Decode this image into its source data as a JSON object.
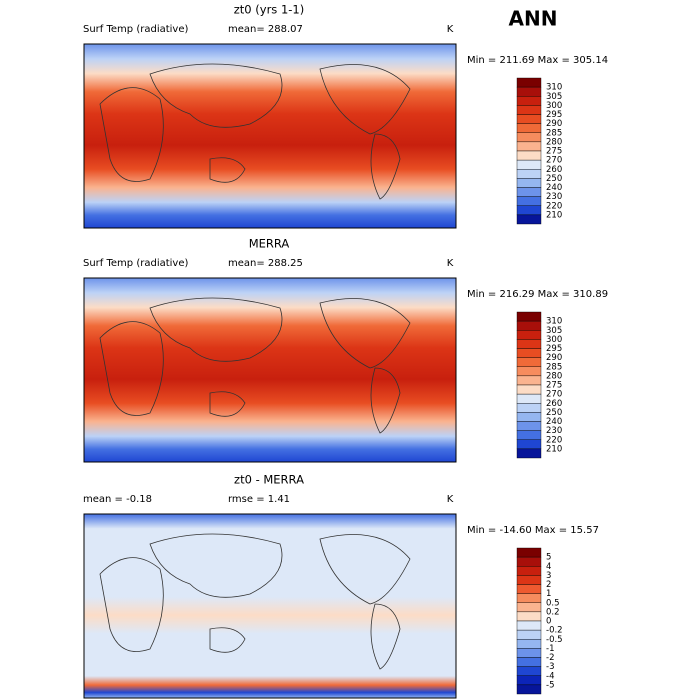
{
  "figure_title": "ANN",
  "panels": [
    {
      "title": "zt0 (yrs 1-1)",
      "left_label": "Surf Temp (radiative)",
      "stat_label": "mean= 288.07",
      "units": "K",
      "minmax": "Min = 211.69 Max = 305.14",
      "colorbar": {
        "labels": [
          "310",
          "305",
          "300",
          "295",
          "290",
          "285",
          "280",
          "275",
          "270",
          "260",
          "250",
          "240",
          "230",
          "220",
          "210"
        ],
        "colors": [
          "#7a0000",
          "#a80f0a",
          "#c8200e",
          "#dc3516",
          "#e84d22",
          "#f06a38",
          "#f68c5e",
          "#fab38f",
          "#fcdcc6",
          "#dde8f8",
          "#bcd2f6",
          "#95b6f0",
          "#6d93ea",
          "#4470e2",
          "#1f46d2",
          "#07159a"
        ]
      }
    },
    {
      "title": "MERRA",
      "left_label": "Surf Temp (radiative)",
      "stat_label": "mean= 288.25",
      "units": "K",
      "minmax": "Min = 216.29 Max = 310.89",
      "colorbar": {
        "labels": [
          "310",
          "305",
          "300",
          "295",
          "290",
          "285",
          "280",
          "275",
          "270",
          "260",
          "250",
          "240",
          "230",
          "220",
          "210"
        ],
        "colors": [
          "#7a0000",
          "#a80f0a",
          "#c8200e",
          "#dc3516",
          "#e84d22",
          "#f06a38",
          "#f68c5e",
          "#fab38f",
          "#fcdcc6",
          "#dde8f8",
          "#bcd2f6",
          "#95b6f0",
          "#6d93ea",
          "#4470e2",
          "#1f46d2",
          "#07159a"
        ]
      }
    },
    {
      "title": "zt0 - MERRA",
      "left_label": "mean =  -0.18",
      "stat_label": "rmse =   1.41",
      "units": "K",
      "minmax": "Min = -14.60 Max =  15.57",
      "colorbar": {
        "labels": [
          "5",
          "4",
          "3",
          "2",
          "1",
          "0.5",
          "0.2",
          "0",
          "-0.2",
          "-0.5",
          "-1",
          "-2",
          "-3",
          "-4",
          "-5"
        ],
        "colors": [
          "#7a0000",
          "#a80f0a",
          "#c8200e",
          "#dc3516",
          "#ee5a30",
          "#f68c5e",
          "#fab38f",
          "#fcdcc6",
          "#dde8f8",
          "#bcd2f6",
          "#95b6f0",
          "#6d93ea",
          "#4470e2",
          "#1f46d2",
          "#0c24b8",
          "#07159a"
        ]
      }
    }
  ]
}
